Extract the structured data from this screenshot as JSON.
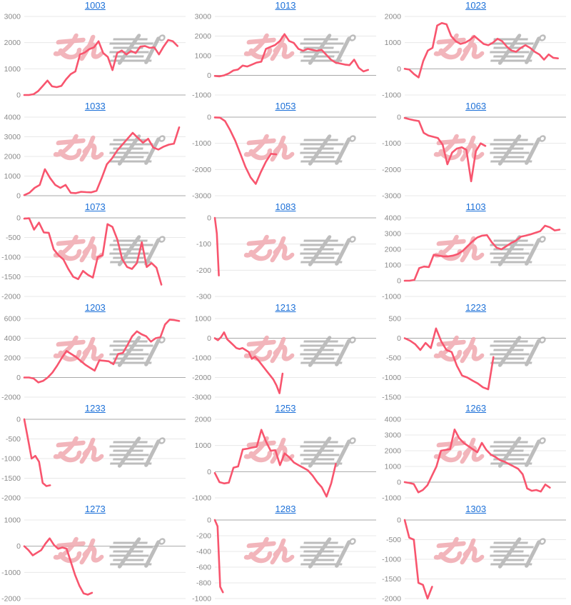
{
  "page": {
    "background": "#ffffff"
  },
  "style": {
    "line_color": "#f8556e",
    "grid_color": "#e8e8e8",
    "zero_line_color": "#a9a9a9",
    "tick_color": "#8a8a8a",
    "title_color": "#1c70d8"
  },
  "watermark": {
    "text_pink": "みん",
    "text_gray": "レポ",
    "pink_color": "#f0a9b0",
    "gray_color": "#b2b2b2"
  },
  "chart_data": [
    {
      "type": "line",
      "title": "1003",
      "ylim": [
        0,
        3000
      ],
      "yticks": [
        0,
        1000,
        2000,
        3000
      ],
      "end_frac": 0.95,
      "values": [
        0,
        0,
        30,
        150,
        350,
        550,
        330,
        300,
        350,
        600,
        800,
        900,
        1550,
        1620,
        1750,
        1820,
        2050,
        1600,
        1450,
        950,
        1600,
        1700,
        1550,
        1680,
        1600,
        1850,
        1870,
        1800,
        1820,
        1550,
        1850,
        2100,
        2050,
        1870
      ]
    },
    {
      "type": "line",
      "title": "1013",
      "ylim": [
        -1000,
        3000
      ],
      "yticks": [
        -1000,
        0,
        1000,
        2000,
        3000
      ],
      "end_frac": 0.95,
      "values": [
        -30,
        -50,
        0,
        100,
        250,
        300,
        500,
        450,
        550,
        650,
        700,
        1350,
        1450,
        1550,
        1750,
        2100,
        1750,
        1650,
        1350,
        1250,
        1350,
        1300,
        1250,
        1300,
        1050,
        800,
        650,
        600,
        550,
        520,
        800,
        380,
        200,
        280
      ]
    },
    {
      "type": "line",
      "title": "1023",
      "ylim": [
        -1000,
        2000
      ],
      "yticks": [
        -1000,
        0,
        1000,
        2000
      ],
      "end_frac": 0.95,
      "values": [
        0,
        -30,
        -200,
        -330,
        300,
        700,
        800,
        1650,
        1750,
        1700,
        1250,
        1050,
        950,
        1000,
        1100,
        1250,
        1100,
        950,
        900,
        1000,
        1150,
        1050,
        850,
        700,
        650,
        800,
        900,
        800,
        650,
        550,
        350,
        550,
        420,
        400
      ]
    },
    {
      "type": "line",
      "title": "1033",
      "ylim": [
        0,
        4000
      ],
      "yticks": [
        0,
        1000,
        2000,
        3000,
        4000
      ],
      "end_frac": 0.96,
      "values": [
        30,
        150,
        400,
        550,
        1350,
        900,
        550,
        400,
        550,
        150,
        130,
        200,
        180,
        170,
        250,
        900,
        1600,
        1900,
        2300,
        2600,
        2900,
        3200,
        2950,
        2700,
        2900,
        2450,
        2350,
        2500,
        2600,
        2650,
        3480
      ]
    },
    {
      "type": "line",
      "title": "1053",
      "ylim": [
        -3000,
        0
      ],
      "yticks": [
        -3000,
        -2000,
        -1000,
        0
      ],
      "end_frac": 0.38,
      "values": [
        -10,
        -20,
        -150,
        -500,
        -900,
        -1400,
        -1900,
        -2300,
        -2550,
        -2100,
        -1700,
        -1400,
        -1420
      ]
    },
    {
      "type": "line",
      "title": "1063",
      "ylim": [
        -3000,
        0
      ],
      "yticks": [
        -3000,
        -2000,
        -1000,
        0
      ],
      "end_frac": 0.5,
      "values": [
        -30,
        -80,
        -120,
        -150,
        -600,
        -700,
        -750,
        -800,
        -1050,
        -1800,
        -1350,
        -1200,
        -1150,
        -1250,
        -2450,
        -1300,
        -1000,
        -1100
      ]
    },
    {
      "type": "line",
      "title": "1073",
      "ylim": [
        -2000,
        0
      ],
      "yticks": [
        -2000,
        -1500,
        -1000,
        -500,
        0
      ],
      "end_frac": 0.85,
      "values": [
        -20,
        -10,
        -300,
        -120,
        -370,
        -380,
        -800,
        -950,
        -1060,
        -1300,
        -1500,
        -1560,
        -1350,
        -1450,
        -1520,
        -1000,
        -950,
        -160,
        -230,
        -550,
        -1050,
        -1250,
        -1300,
        -1150,
        -620,
        -1250,
        -1150,
        -1270,
        -1700
      ]
    },
    {
      "type": "line",
      "title": "1083",
      "ylim": [
        -300,
        0
      ],
      "yticks": [
        -300,
        -200,
        -100,
        0
      ],
      "end_frac": 0.025,
      "values": [
        0,
        -60,
        -220
      ]
    },
    {
      "type": "line",
      "title": "1103",
      "ylim": [
        -1000,
        4000
      ],
      "yticks": [
        -1000,
        0,
        1000,
        2000,
        3000,
        4000
      ],
      "end_frac": 0.96,
      "values": [
        0,
        0,
        50,
        800,
        900,
        870,
        1650,
        1600,
        1550,
        1550,
        1600,
        1700,
        1900,
        2200,
        2500,
        2750,
        2870,
        2900,
        2450,
        2100,
        2000,
        2200,
        2400,
        2550,
        2800,
        2870,
        2950,
        3050,
        3150,
        3500,
        3400,
        3200,
        3250
      ]
    },
    {
      "type": "line",
      "title": "1203",
      "ylim": [
        -2000,
        6000
      ],
      "yticks": [
        -2000,
        0,
        2000,
        4000,
        6000
      ],
      "end_frac": 0.96,
      "values": [
        0,
        0,
        -100,
        -500,
        -350,
        0,
        500,
        1200,
        2000,
        2700,
        2400,
        2100,
        1700,
        1300,
        1000,
        700,
        1750,
        1700,
        1650,
        1350,
        2400,
        2500,
        3300,
        4200,
        4700,
        4400,
        4200,
        3650,
        4000,
        4100,
        5400,
        5900,
        5850,
        5750
      ]
    },
    {
      "type": "line",
      "title": "1213",
      "ylim": [
        -3000,
        1000
      ],
      "yticks": [
        -3000,
        -2000,
        -1000,
        0,
        1000
      ],
      "end_frac": 0.42,
      "values": [
        0,
        -100,
        50,
        300,
        -50,
        -200,
        -350,
        -500,
        -550,
        -500,
        -600,
        -700,
        -1050,
        -950,
        -1100,
        -1300,
        -1500,
        -1700,
        -1900,
        -2100,
        -2400,
        -2800,
        -1800
      ]
    },
    {
      "type": "line",
      "title": "1223",
      "ylim": [
        -1500,
        500
      ],
      "yticks": [
        -1500,
        -1000,
        -500,
        0,
        500
      ],
      "end_frac": 0.55,
      "values": [
        0,
        -60,
        -150,
        -300,
        -120,
        -250,
        250,
        -80,
        -300,
        -350,
        -700,
        -950,
        -1000,
        -1080,
        -1150,
        -1250,
        -1300,
        -480
      ]
    },
    {
      "type": "line",
      "title": "1233",
      "ylim": [
        -2000,
        0
      ],
      "yticks": [
        -2000,
        -1500,
        -1000,
        -500,
        0
      ],
      "end_frac": 0.16,
      "values": [
        0,
        -500,
        -1000,
        -930,
        -1080,
        -1620,
        -1700,
        -1680
      ]
    },
    {
      "type": "line",
      "title": "1253",
      "ylim": [
        -1000,
        2000
      ],
      "yticks": [
        -1000,
        0,
        1000,
        2000
      ],
      "end_frac": 0.75,
      "values": [
        -50,
        -400,
        -450,
        -420,
        150,
        200,
        850,
        880,
        920,
        950,
        1600,
        1150,
        800,
        820,
        250,
        700,
        550,
        350,
        250,
        150,
        50,
        -150,
        -400,
        -600,
        -950,
        -450,
        300
      ]
    },
    {
      "type": "line",
      "title": "1263",
      "ylim": [
        -1000,
        4000
      ],
      "yticks": [
        -1000,
        0,
        1000,
        2000,
        3000,
        4000
      ],
      "end_frac": 0.9,
      "values": [
        0,
        -50,
        -120,
        -650,
        -500,
        -200,
        400,
        1000,
        2000,
        2050,
        2100,
        3350,
        2800,
        2500,
        2300,
        2100,
        1900,
        2500,
        2050,
        1750,
        1600,
        1400,
        1300,
        1150,
        1000,
        850,
        500,
        -400,
        -550,
        -500,
        -600,
        -150,
        -350
      ]
    },
    {
      "type": "line",
      "title": "1273",
      "ylim": [
        -2000,
        1000
      ],
      "yticks": [
        -2000,
        -1000,
        0,
        1000
      ],
      "end_frac": 0.42,
      "values": [
        0,
        -150,
        -350,
        -250,
        -150,
        100,
        300,
        50,
        -100,
        -50,
        -100,
        -600,
        -1100,
        -1500,
        -1800,
        -1850,
        -1780
      ]
    },
    {
      "type": "line",
      "title": "1283",
      "ylim": [
        -1000,
        0
      ],
      "yticks": [
        -1000,
        -800,
        -600,
        -400,
        -200,
        0
      ],
      "end_frac": 0.05,
      "values": [
        0,
        -80,
        -850,
        -920
      ]
    },
    {
      "type": "line",
      "title": "1303",
      "ylim": [
        -2000,
        0
      ],
      "yticks": [
        -2000,
        -1500,
        -1000,
        -500,
        0
      ],
      "end_frac": 0.17,
      "values": [
        0,
        -450,
        -500,
        -1600,
        -1650,
        -2000,
        -1700
      ]
    }
  ]
}
